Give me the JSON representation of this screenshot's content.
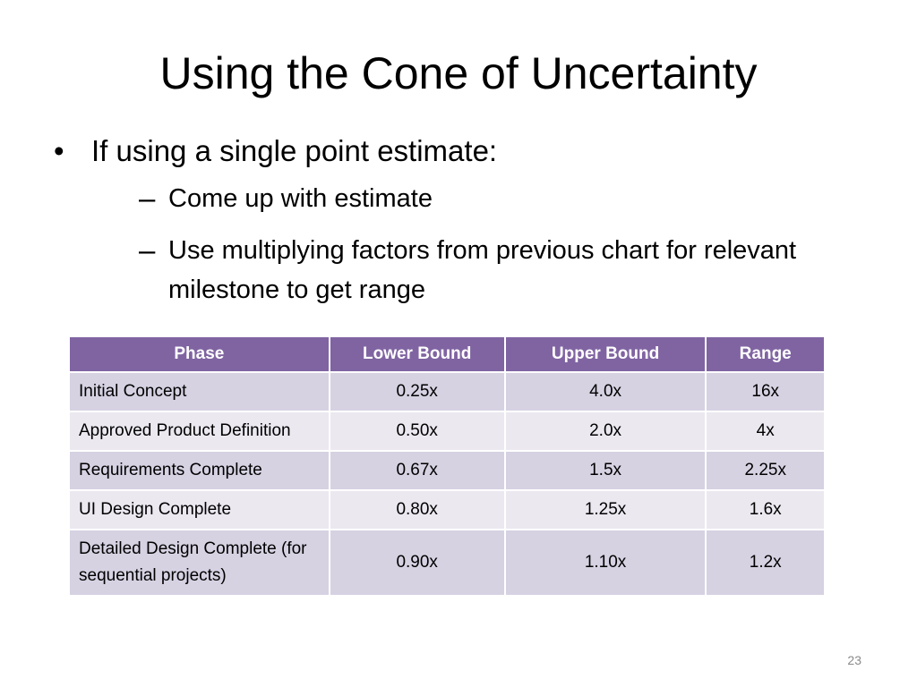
{
  "slide": {
    "title": "Using the Cone of Uncertainty",
    "bullet": "If using a single point estimate:",
    "bullet_marker": "•",
    "sub_marker": "–",
    "sub_bullets": [
      "Come up with estimate",
      "Use multiplying factors from previous chart for relevant milestone to get range"
    ],
    "page_number": "23"
  },
  "table": {
    "headers": [
      "Phase",
      "Lower Bound",
      "Upper Bound",
      "Range"
    ],
    "rows": [
      [
        "Initial Concept",
        "0.25x",
        "4.0x",
        "16x"
      ],
      [
        "Approved Product Definition",
        "0.50x",
        "2.0x",
        "4x"
      ],
      [
        "Requirements Complete",
        "0.67x",
        "1.5x",
        "2.25x"
      ],
      [
        "UI Design Complete",
        "0.80x",
        "1.25x",
        "1.6x"
      ],
      [
        "Detailed Design Complete (for sequential projects)",
        "0.90x",
        "1.10x",
        "1.2x"
      ]
    ]
  },
  "colors": {
    "header_bg": "#8064a2",
    "row_odd_bg": "#d6d2e2",
    "row_even_bg": "#ebe8f0"
  }
}
